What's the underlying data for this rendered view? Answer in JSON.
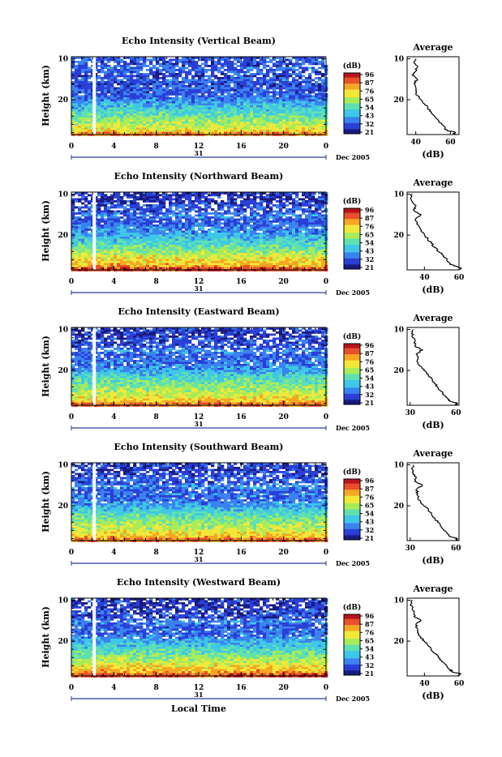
{
  "figure": {
    "x_axis_label": "Local Time",
    "date_label": "Dec 2005",
    "day_label": "31",
    "y_axis_label": "Height (km)",
    "colorbar_title": "(dB)",
    "colorbar_ticks": [
      "96",
      "87",
      "76",
      "65",
      "54",
      "43",
      "32",
      "21"
    ],
    "average_title": "Average",
    "average_unit": "(dB)",
    "x_ticks": [
      "0",
      "4",
      "8",
      "12",
      "16",
      "20",
      "0"
    ],
    "y_ticks": [
      "20",
      "10"
    ],
    "colormap": [
      "#1a1a80",
      "#2a3fd6",
      "#3b82f0",
      "#3ec7e6",
      "#5fe0b0",
      "#a8ec5a",
      "#f2e83a",
      "#f5a623",
      "#e8502a",
      "#b8141c"
    ]
  },
  "chart_data": [
    {
      "type": "heatmap",
      "title": "Echo Intensity (Vertical Beam)",
      "xlabel": "Local Time",
      "ylabel": "Height (km)",
      "xlim": [
        0,
        24
      ],
      "ylim": [
        1.5,
        20.5
      ],
      "x_ticks": [
        0,
        4,
        8,
        12,
        16,
        20,
        24
      ],
      "y_ticks": [
        10,
        20
      ],
      "color_range_db": [
        21,
        96
      ],
      "profile": {
        "title": "Average",
        "xlabel": "(dB)",
        "xlim": [
          35,
          65
        ],
        "x_ticks": [
          40,
          60
        ],
        "x_tick_labels": [
          "40",
          "60"
        ],
        "heights": [
          1.5,
          2,
          2.5,
          3,
          4,
          5,
          6,
          7,
          8,
          9,
          10,
          11,
          12,
          13,
          14,
          15,
          16,
          17,
          18,
          19,
          20
        ],
        "values": [
          62,
          63,
          58,
          57,
          55,
          53,
          51,
          49,
          47,
          45,
          43,
          41,
          40,
          40,
          39,
          41,
          38,
          40,
          41,
          39,
          40
        ]
      }
    },
    {
      "type": "heatmap",
      "title": "Echo Intensity (Northward Beam)",
      "xlabel": "Local Time",
      "ylabel": "Height (km)",
      "xlim": [
        0,
        24
      ],
      "ylim": [
        1.5,
        20.5
      ],
      "x_ticks": [
        0,
        4,
        8,
        12,
        16,
        20,
        24
      ],
      "y_ticks": [
        10,
        20
      ],
      "color_range_db": [
        21,
        96
      ],
      "profile": {
        "title": "Average",
        "xlabel": "(dB)",
        "xlim": [
          30,
          60
        ],
        "x_ticks": [
          40,
          60
        ],
        "x_tick_labels": [
          "40",
          "60"
        ],
        "heights": [
          1.5,
          2,
          2.5,
          3,
          4,
          5,
          6,
          7,
          8,
          9,
          10,
          11,
          12,
          13,
          14,
          15,
          16,
          17,
          18,
          19,
          20
        ],
        "values": [
          60,
          61,
          57,
          55,
          53,
          51,
          48,
          46,
          44,
          42,
          40,
          38,
          37,
          36,
          35,
          38,
          34,
          35,
          33,
          32,
          33
        ]
      }
    },
    {
      "type": "heatmap",
      "title": "Echo Intensity (Eastward Beam)",
      "xlabel": "Local Time",
      "ylabel": "Height (km)",
      "xlim": [
        0,
        24
      ],
      "ylim": [
        1.5,
        20.5
      ],
      "x_ticks": [
        0,
        4,
        8,
        12,
        16,
        20,
        24
      ],
      "y_ticks": [
        10,
        20
      ],
      "color_range_db": [
        21,
        96
      ],
      "profile": {
        "title": "Average",
        "xlabel": "(dB)",
        "xlim": [
          28,
          62
        ],
        "x_ticks": [
          30,
          60
        ],
        "x_tick_labels": [
          "30",
          "60"
        ],
        "heights": [
          1.5,
          2,
          2.5,
          3,
          4,
          5,
          6,
          7,
          8,
          9,
          10,
          11,
          12,
          13,
          14,
          15,
          16,
          17,
          18,
          19,
          20
        ],
        "values": [
          60,
          61,
          56,
          55,
          52,
          50,
          48,
          46,
          44,
          42,
          39,
          37,
          35,
          35,
          34,
          38,
          33,
          33,
          32,
          31,
          32
        ]
      }
    },
    {
      "type": "heatmap",
      "title": "Echo Intensity (Southward Beam)",
      "xlabel": "Local Time",
      "ylabel": "Height (km)",
      "xlim": [
        0,
        24
      ],
      "ylim": [
        1.5,
        20.5
      ],
      "x_ticks": [
        0,
        4,
        8,
        12,
        16,
        20,
        24
      ],
      "y_ticks": [
        10,
        20
      ],
      "color_range_db": [
        21,
        96
      ],
      "profile": {
        "title": "Average",
        "xlabel": "(dB)",
        "xlim": [
          28,
          62
        ],
        "x_ticks": [
          30,
          60
        ],
        "x_tick_labels": [
          "30",
          "60"
        ],
        "heights": [
          1.5,
          2,
          2.5,
          3,
          4,
          5,
          6,
          7,
          8,
          9,
          10,
          11,
          12,
          13,
          14,
          15,
          16,
          17,
          18,
          19,
          20
        ],
        "values": [
          60,
          61,
          56,
          55,
          52,
          50,
          48,
          46,
          44,
          42,
          39,
          37,
          35,
          35,
          34,
          38,
          33,
          34,
          32,
          31,
          32
        ]
      }
    },
    {
      "type": "heatmap",
      "title": "Echo Intensity (Westward Beam)",
      "xlabel": "Local Time",
      "ylabel": "Height (km)",
      "xlim": [
        0,
        24
      ],
      "ylim": [
        1.5,
        20.5
      ],
      "x_ticks": [
        0,
        4,
        8,
        12,
        16,
        20,
        24
      ],
      "y_ticks": [
        10,
        20
      ],
      "color_range_db": [
        21,
        96
      ],
      "profile": {
        "title": "Average",
        "xlabel": "(dB)",
        "xlim": [
          30,
          60
        ],
        "x_ticks": [
          40,
          60
        ],
        "x_tick_labels": [
          "40",
          "60"
        ],
        "heights": [
          1.5,
          2,
          2.5,
          3,
          4,
          5,
          6,
          7,
          8,
          9,
          10,
          11,
          12,
          13,
          14,
          15,
          16,
          17,
          18,
          19,
          20
        ],
        "values": [
          60,
          61,
          56,
          55,
          53,
          50,
          48,
          46,
          44,
          42,
          40,
          38,
          36,
          36,
          35,
          38,
          34,
          34,
          33,
          32,
          33
        ]
      }
    }
  ]
}
